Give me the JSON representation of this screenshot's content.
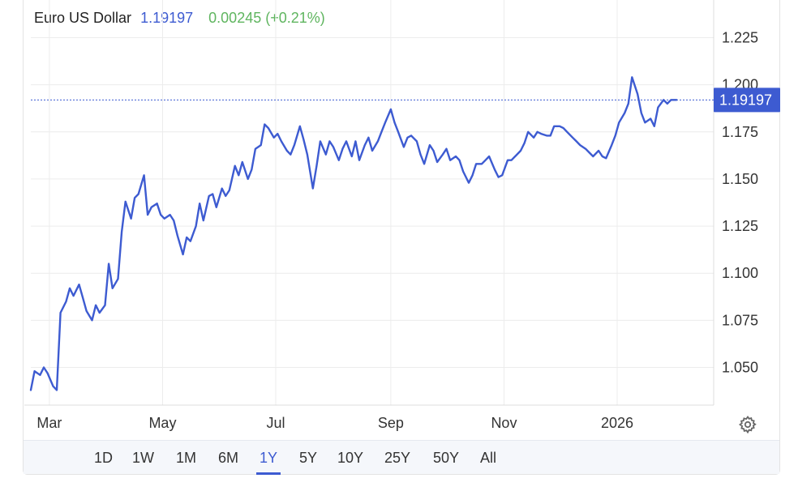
{
  "header": {
    "name": "Euro US Dollar",
    "price": "1.19197",
    "change": "0.00245 (+0.21%)"
  },
  "current_label": "1.19197",
  "colors": {
    "line": "#3d5bd1",
    "grid": "#ececec",
    "up": "#5fb55f",
    "badge": "#3d5bd1"
  },
  "settings_icon": "gear-icon",
  "ranges": [
    "1D",
    "1W",
    "1M",
    "6M",
    "1Y",
    "5Y",
    "10Y",
    "25Y",
    "50Y",
    "All"
  ],
  "active_range": "1Y",
  "chart_data": {
    "type": "line",
    "ylim": [
      1.03,
      1.245
    ],
    "xlim": [
      "2025-02-19",
      "2026-02-22"
    ],
    "grid": true,
    "yticks": [
      1.05,
      1.075,
      1.1,
      1.125,
      1.15,
      1.175,
      1.2,
      1.225
    ],
    "ytick_labels": [
      "1.050",
      "1.075",
      "1.100",
      "1.125",
      "1.150",
      "1.175",
      "1.200",
      "1.225"
    ],
    "xticks": [
      {
        "date": "2025-03-01",
        "label": "Mar"
      },
      {
        "date": "2025-05-01",
        "label": "May"
      },
      {
        "date": "2025-07-01",
        "label": "Jul"
      },
      {
        "date": "2025-09-01",
        "label": "Sep"
      },
      {
        "date": "2025-11-01",
        "label": "Nov"
      },
      {
        "date": "2026-01-01",
        "label": "2026"
      }
    ],
    "current_value": 1.19197,
    "series": [
      {
        "x": [
          "2025-02-19",
          "2025-02-21",
          "2025-02-24",
          "2025-02-26",
          "2025-02-28",
          "2025-03-03",
          "2025-03-05",
          "2025-03-07",
          "2025-03-10",
          "2025-03-12",
          "2025-03-14",
          "2025-03-17",
          "2025-03-19",
          "2025-03-21",
          "2025-03-24",
          "2025-03-26",
          "2025-03-28",
          "2025-03-31",
          "2025-04-02",
          "2025-04-04",
          "2025-04-07",
          "2025-04-09",
          "2025-04-11",
          "2025-04-14",
          "2025-04-16",
          "2025-04-18",
          "2025-04-21",
          "2025-04-23",
          "2025-04-25",
          "2025-04-28",
          "2025-04-30",
          "2025-05-02",
          "2025-05-05",
          "2025-05-07",
          "2025-05-09",
          "2025-05-12",
          "2025-05-14",
          "2025-05-16",
          "2025-05-19",
          "2025-05-21",
          "2025-05-23",
          "2025-05-26",
          "2025-05-28",
          "2025-05-30",
          "2025-06-02",
          "2025-06-04",
          "2025-06-06",
          "2025-06-09",
          "2025-06-11",
          "2025-06-13",
          "2025-06-16",
          "2025-06-18",
          "2025-06-20",
          "2025-06-23",
          "2025-06-25",
          "2025-06-27",
          "2025-06-30",
          "2025-07-02",
          "2025-07-04",
          "2025-07-07",
          "2025-07-09",
          "2025-07-11",
          "2025-07-14",
          "2025-07-16",
          "2025-07-18",
          "2025-07-21",
          "2025-07-23",
          "2025-07-25",
          "2025-07-28",
          "2025-07-30",
          "2025-08-01",
          "2025-08-04",
          "2025-08-06",
          "2025-08-08",
          "2025-08-11",
          "2025-08-13",
          "2025-08-15",
          "2025-08-18",
          "2025-08-20",
          "2025-08-22",
          "2025-08-25",
          "2025-08-27",
          "2025-08-29",
          "2025-09-01",
          "2025-09-03",
          "2025-09-05",
          "2025-09-08",
          "2025-09-10",
          "2025-09-12",
          "2025-09-15",
          "2025-09-17",
          "2025-09-19",
          "2025-09-22",
          "2025-09-24",
          "2025-09-26",
          "2025-09-29",
          "2025-10-01",
          "2025-10-03",
          "2025-10-06",
          "2025-10-08",
          "2025-10-10",
          "2025-10-13",
          "2025-10-15",
          "2025-10-17",
          "2025-10-20",
          "2025-10-22",
          "2025-10-24",
          "2025-10-27",
          "2025-10-29",
          "2025-10-31",
          "2025-11-03",
          "2025-11-05",
          "2025-11-07",
          "2025-11-10",
          "2025-11-12",
          "2025-11-14",
          "2025-11-17",
          "2025-11-19",
          "2025-11-21",
          "2025-11-24",
          "2025-11-26",
          "2025-11-28",
          "2025-12-01",
          "2025-12-03",
          "2025-12-05",
          "2025-12-08",
          "2025-12-10",
          "2025-12-12",
          "2025-12-15",
          "2025-12-17",
          "2025-12-19",
          "2025-12-22",
          "2025-12-24",
          "2025-12-26",
          "2025-12-29",
          "2025-12-31",
          "2026-01-02",
          "2026-01-05",
          "2026-01-07",
          "2026-01-09",
          "2026-01-12",
          "2026-01-14",
          "2026-01-16",
          "2026-01-19",
          "2026-01-21",
          "2026-01-23",
          "2026-01-26",
          "2026-01-28",
          "2026-01-30",
          "2026-02-02",
          "2026-02-04",
          "2026-02-06",
          "2026-02-09",
          "2026-02-11"
        ],
        "y": [
          1.038,
          1.048,
          1.046,
          1.05,
          1.047,
          1.04,
          1.038,
          1.079,
          1.085,
          1.092,
          1.088,
          1.094,
          1.087,
          1.08,
          1.075,
          1.083,
          1.079,
          1.083,
          1.105,
          1.092,
          1.097,
          1.122,
          1.138,
          1.129,
          1.14,
          1.142,
          1.152,
          1.131,
          1.135,
          1.137,
          1.131,
          1.129,
          1.131,
          1.128,
          1.12,
          1.11,
          1.119,
          1.117,
          1.125,
          1.137,
          1.128,
          1.141,
          1.142,
          1.135,
          1.145,
          1.141,
          1.144,
          1.157,
          1.152,
          1.159,
          1.15,
          1.155,
          1.166,
          1.168,
          1.179,
          1.177,
          1.172,
          1.174,
          1.17,
          1.165,
          1.163,
          1.168,
          1.178,
          1.171,
          1.163,
          1.145,
          1.157,
          1.17,
          1.163,
          1.17,
          1.167,
          1.16,
          1.166,
          1.17,
          1.162,
          1.17,
          1.16,
          1.168,
          1.172,
          1.165,
          1.17,
          1.175,
          1.18,
          1.187,
          1.18,
          1.175,
          1.167,
          1.172,
          1.173,
          1.17,
          1.163,
          1.158,
          1.168,
          1.165,
          1.159,
          1.163,
          1.166,
          1.16,
          1.162,
          1.16,
          1.154,
          1.148,
          1.152,
          1.158,
          1.158,
          1.16,
          1.162,
          1.155,
          1.151,
          1.152,
          1.16,
          1.16,
          1.162,
          1.165,
          1.169,
          1.175,
          1.172,
          1.175,
          1.174,
          1.173,
          1.173,
          1.178,
          1.178,
          1.177,
          1.175,
          1.172,
          1.17,
          1.168,
          1.166,
          1.164,
          1.162,
          1.165,
          1.162,
          1.161,
          1.168,
          1.173,
          1.18,
          1.185,
          1.19,
          1.204,
          1.195,
          1.185,
          1.18,
          1.182,
          1.178,
          1.188,
          1.192,
          1.19,
          1.192,
          1.19197,
          1.19197,
          1.19197,
          1.19197,
          1.19197
        ]
      }
    ]
  }
}
